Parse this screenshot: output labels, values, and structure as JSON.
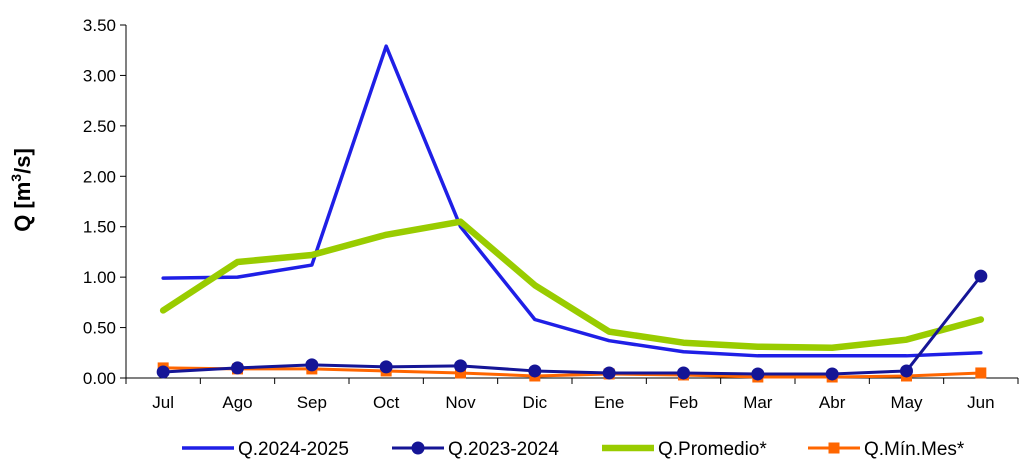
{
  "chart_data": {
    "type": "line",
    "title": "",
    "xlabel": "",
    "ylabel_main": "Q [m",
    "ylabel_sup": "3",
    "ylabel_tail": "/s]",
    "categories": [
      "Jul",
      "Ago",
      "Sep",
      "Oct",
      "Nov",
      "Dic",
      "Ene",
      "Feb",
      "Mar",
      "Abr",
      "May",
      "Jun"
    ],
    "y_ticks": [
      "0.00",
      "0.50",
      "1.00",
      "1.50",
      "2.00",
      "2.50",
      "3.00",
      "3.50"
    ],
    "ylim": [
      0,
      3.5
    ],
    "grid": false,
    "legend_position": "bottom",
    "series": [
      {
        "name": "Q.2024-2025",
        "color": "#1f1fe6",
        "marker": "none",
        "values": [
          0.99,
          1.0,
          1.12,
          3.29,
          1.5,
          0.58,
          0.37,
          0.26,
          0.22,
          0.22,
          0.22,
          0.25
        ]
      },
      {
        "name": "Q.2023-2024",
        "color": "#151596",
        "marker": "circle",
        "values": [
          0.06,
          0.1,
          0.13,
          0.11,
          0.12,
          0.07,
          0.05,
          0.05,
          0.04,
          0.04,
          0.07,
          1.01
        ]
      },
      {
        "name": "Q.Promedio*",
        "color": "#99cc00",
        "marker": "none",
        "values": [
          0.67,
          1.15,
          1.22,
          1.42,
          1.55,
          0.92,
          0.46,
          0.35,
          0.31,
          0.3,
          0.38,
          0.58
        ]
      },
      {
        "name": "Q.Mín.Mes*",
        "color": "#ff6600",
        "marker": "square",
        "values": [
          0.1,
          0.09,
          0.09,
          0.07,
          0.05,
          0.02,
          0.04,
          0.03,
          0.01,
          0.01,
          0.02,
          0.05
        ]
      }
    ]
  }
}
